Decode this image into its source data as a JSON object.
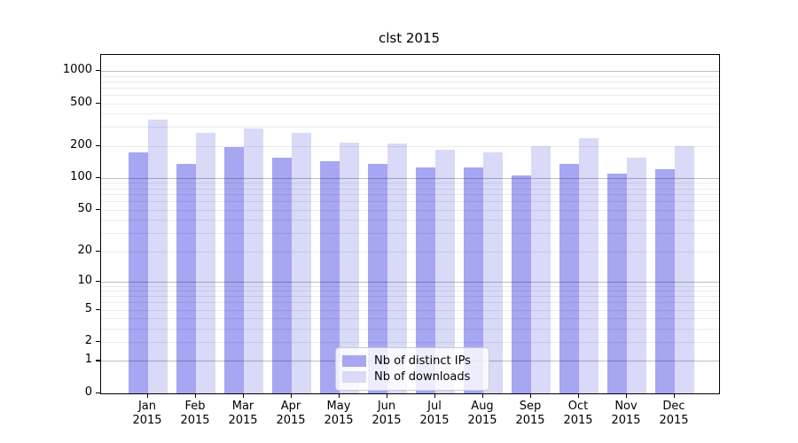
{
  "chart_data": {
    "type": "bar",
    "title": "clst 2015",
    "months": [
      "Jan",
      "Feb",
      "Mar",
      "Apr",
      "May",
      "Jun",
      "Jul",
      "Aug",
      "Sep",
      "Oct",
      "Nov",
      "Dec"
    ],
    "year_label": "2015",
    "series": [
      {
        "name": "Nb of distinct IPs",
        "color": "#a6a6f2",
        "values": [
          175,
          135,
          195,
          155,
          145,
          135,
          125,
          125,
          105,
          135,
          110,
          120
        ]
      },
      {
        "name": "Nb of downloads",
        "color": "#d9d9f8",
        "values": [
          350,
          265,
          290,
          265,
          215,
          210,
          185,
          175,
          200,
          235,
          155,
          200
        ]
      }
    ],
    "yscale": "log1p",
    "ytick_values": [
      0,
      1,
      2,
      5,
      10,
      20,
      50,
      100,
      200,
      500,
      1000
    ],
    "ytick_labels": [
      "0",
      "1",
      "2",
      "5",
      "10",
      "20",
      "50",
      "100",
      "200",
      "500",
      "1000"
    ],
    "ylim": [
      0,
      1410
    ],
    "grid": "major and minor horizontal gridlines, drawn over bars",
    "legend_position": "lower center inside plot"
  }
}
